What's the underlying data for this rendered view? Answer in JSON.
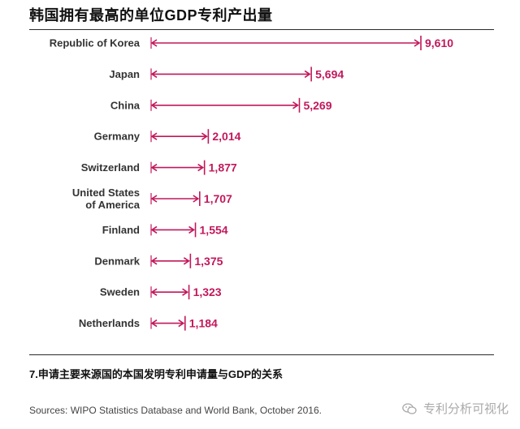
{
  "title": "韩国拥有最高的单位GDP专利产出量",
  "caption": "7.申请主要来源国的本国发明专利申请量与GDP的关系",
  "source": "Sources: WIPO Statistics Database and World Bank, October 2016.",
  "watermark": {
    "text": "专利分析可视化",
    "icon": "wechat-icon"
  },
  "colors": {
    "accent": "#c2185b",
    "text": "#333333",
    "rule": "#2a2a2a"
  },
  "chart_data": {
    "type": "bar",
    "orientation": "horizontal",
    "style": "double-arrow range markers",
    "categories": [
      [
        "Republic of Korea"
      ],
      [
        "Japan"
      ],
      [
        "China"
      ],
      [
        "Germany"
      ],
      [
        "Switzerland"
      ],
      [
        "United States",
        "of America"
      ],
      [
        "Finland"
      ],
      [
        "Denmark"
      ],
      [
        "Sweden"
      ],
      [
        "Netherlands"
      ]
    ],
    "values": [
      9610,
      5694,
      5269,
      2014,
      1877,
      1707,
      1554,
      1375,
      1323,
      1184
    ],
    "value_labels": [
      "9,610",
      "5,694",
      "5,269",
      "2,014",
      "1,877",
      "1,707",
      "1,554",
      "1,375",
      "1,323",
      "1,184"
    ],
    "xlim": [
      0,
      9610
    ],
    "grid": false,
    "legend": "none"
  }
}
